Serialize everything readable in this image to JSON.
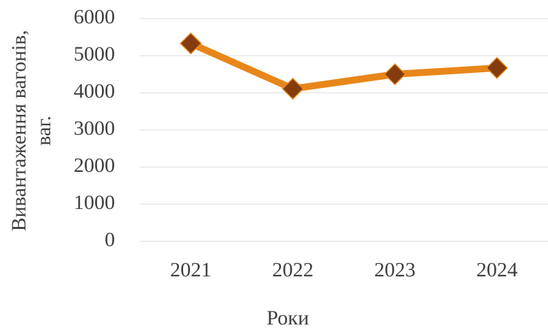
{
  "chart_data": {
    "type": "line",
    "categories": [
      "2021",
      "2022",
      "2023",
      "2024"
    ],
    "series": [
      {
        "name": "Вивантаження вагонів",
        "color": "#e8861a",
        "marker_color": "#843c0c",
        "values": [
          5330,
          4110,
          4500,
          4670
        ]
      }
    ],
    "ylim": [
      0,
      6000
    ],
    "yticks": [
      0,
      1000,
      2000,
      3000,
      4000,
      5000,
      6000
    ],
    "grid": true,
    "ylabel": [
      "Вивантаження вагонів,",
      "ваг."
    ],
    "xlabel": "Роки"
  }
}
